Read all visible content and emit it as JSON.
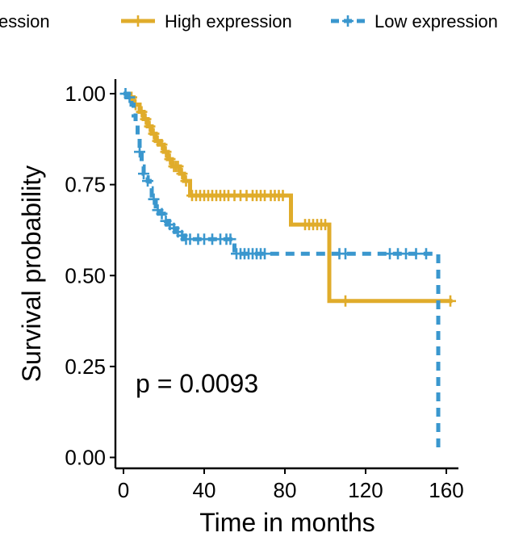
{
  "chart_data": {
    "type": "line",
    "subtype": "kaplan-meier",
    "xlabel": "Time in months",
    "ylabel": "Survival probability",
    "xlim": [
      -4,
      166
    ],
    "ylim": [
      -0.03,
      1.04
    ],
    "x_ticks": [
      0,
      40,
      80,
      120,
      160
    ],
    "y_ticks": [
      0.0,
      0.25,
      0.5,
      0.75,
      1.0
    ],
    "y_tick_labels": [
      "0.00",
      "0.25",
      "0.50",
      "0.75",
      "1.00"
    ],
    "grid": false,
    "legend_position": "top",
    "legend_title_partial": "ession",
    "annotation": "p = 0.0093",
    "series": [
      {
        "name": "High expression",
        "color": "#E0AC2B",
        "line_style": "solid",
        "steps": [
          [
            0,
            1.0
          ],
          [
            3,
            0.99
          ],
          [
            5,
            0.97
          ],
          [
            8,
            0.95
          ],
          [
            10,
            0.93
          ],
          [
            12,
            0.91
          ],
          [
            14,
            0.89
          ],
          [
            16,
            0.87
          ],
          [
            18,
            0.86
          ],
          [
            20,
            0.84
          ],
          [
            22,
            0.82
          ],
          [
            24,
            0.8
          ],
          [
            28,
            0.78
          ],
          [
            30,
            0.76
          ],
          [
            33,
            0.72
          ],
          [
            83,
            0.64
          ],
          [
            102,
            0.43
          ],
          [
            163,
            0.43
          ]
        ],
        "censor_x": [
          4,
          6,
          9,
          11,
          13,
          15,
          17,
          19,
          21,
          23,
          25,
          26,
          27,
          29,
          31,
          34,
          36,
          38,
          40,
          42,
          44,
          46,
          48,
          50,
          52,
          55,
          58,
          61,
          64,
          66,
          68,
          70,
          73,
          75,
          77,
          79,
          90,
          92,
          94,
          96,
          98,
          100,
          110,
          162
        ]
      },
      {
        "name": "Low expression",
        "color": "#3A97CE",
        "line_style": "dashed",
        "steps": [
          [
            0,
            1.0
          ],
          [
            2,
            0.99
          ],
          [
            4,
            0.97
          ],
          [
            5,
            0.94
          ],
          [
            6,
            0.92
          ],
          [
            7,
            0.88
          ],
          [
            8,
            0.84
          ],
          [
            9,
            0.8
          ],
          [
            10,
            0.78
          ],
          [
            11,
            0.77
          ],
          [
            12,
            0.76
          ],
          [
            13,
            0.74
          ],
          [
            14,
            0.72
          ],
          [
            15,
            0.71
          ],
          [
            16,
            0.69
          ],
          [
            17,
            0.68
          ],
          [
            18,
            0.67
          ],
          [
            20,
            0.66
          ],
          [
            21,
            0.65
          ],
          [
            22,
            0.64
          ],
          [
            24,
            0.63
          ],
          [
            26,
            0.62
          ],
          [
            28,
            0.61
          ],
          [
            30,
            0.6
          ],
          [
            55,
            0.56
          ],
          [
            156,
            0.56
          ],
          [
            156,
            0.01
          ]
        ],
        "censor_x": [
          1,
          3,
          8,
          10,
          12,
          15,
          17,
          19,
          21,
          23,
          25,
          27,
          29,
          31,
          33,
          37,
          40,
          44,
          48,
          51,
          53,
          56,
          58,
          60,
          62,
          64,
          66,
          68,
          70,
          107,
          110,
          132,
          136,
          140,
          145,
          150
        ]
      }
    ]
  }
}
